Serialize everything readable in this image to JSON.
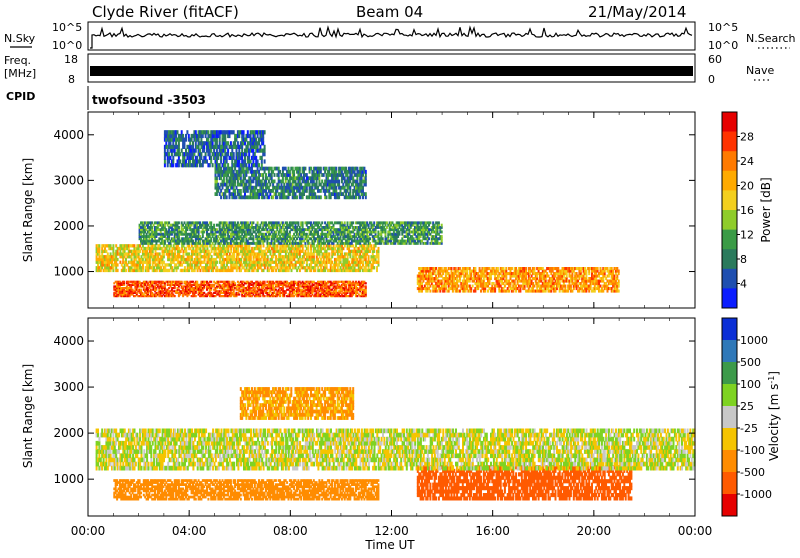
{
  "header": {
    "station": "Clyde River (fitACF)",
    "beam": "Beam 04",
    "date": "21/May/2014"
  },
  "strips": {
    "nsky_label": "N.Sky",
    "nsky_ticks": [
      "10^5",
      "10^0"
    ],
    "nsearch_label": "N.Search",
    "nsearch_ticks": [
      "10^5",
      "10^0"
    ],
    "freq_label": "Freq.",
    "freq_unit": "[MHz]",
    "freq_ticks": [
      "18",
      "8"
    ],
    "nave_label": "Nave",
    "nave_ticks": [
      "60",
      "0"
    ],
    "cpid_label": "CPID",
    "cpid_value": "twofsound -3503"
  },
  "chart_data": [
    {
      "type": "heatmap",
      "name": "power",
      "ylabel": "Slant Range [km]",
      "yticks": [
        1000,
        2000,
        3000,
        4000
      ],
      "ylim": [
        200,
        4500
      ],
      "xlim": [
        0,
        24
      ],
      "colorbar": {
        "label": "Power [dB]",
        "ticks": [
          "28",
          "24",
          "20",
          "16",
          "12",
          "8",
          "4"
        ],
        "colors": [
          "#e60000",
          "#ff3300",
          "#ff7a00",
          "#ffaa00",
          "#f3cf1e",
          "#8fcc2a",
          "#3a9b46",
          "#2a7a5c",
          "#1f4fb0",
          "#0b1dff"
        ]
      },
      "bands": [
        {
          "range": [
            450,
            800
          ],
          "x": [
            1.0,
            11.0
          ],
          "value": 26
        },
        {
          "range": [
            550,
            1100
          ],
          "x": [
            13.0,
            21.0
          ],
          "value": 22
        },
        {
          "range": [
            1000,
            1600
          ],
          "x": [
            0.3,
            11.5
          ],
          "value": 18
        },
        {
          "range": [
            1600,
            2100
          ],
          "x": [
            2.0,
            14.0
          ],
          "value": 10
        },
        {
          "range": [
            2600,
            3300
          ],
          "x": [
            5.0,
            11.0
          ],
          "value": 8
        },
        {
          "range": [
            3300,
            4100
          ],
          "x": [
            3.0,
            7.0
          ],
          "value": 6
        }
      ]
    },
    {
      "type": "heatmap",
      "name": "velocity",
      "ylabel": "Slant Range [km]",
      "xlabel": "Time UT",
      "yticks": [
        1000,
        2000,
        3000,
        4000
      ],
      "ylim": [
        200,
        4500
      ],
      "xlim": [
        0,
        24
      ],
      "xticks": [
        "00:00",
        "04:00",
        "08:00",
        "12:00",
        "16:00",
        "20:00",
        "00:00"
      ],
      "colorbar": {
        "label": "Velocity [m s",
        "label_sup": "-1",
        "label_end": "]",
        "ticks": [
          "1000",
          "500",
          "100",
          "25",
          "-25",
          "-100",
          "-500",
          "-1000"
        ],
        "colors": [
          "#0b2fd6",
          "#2f78b8",
          "#3c9a4a",
          "#7ed322",
          "#c8c8c8",
          "#f5c400",
          "#ff8c00",
          "#ff5a00",
          "#e60000"
        ]
      },
      "bands": [
        {
          "range": [
            550,
            1000
          ],
          "x": [
            1.0,
            11.5
          ],
          "value": -150
        },
        {
          "range": [
            550,
            1300
          ],
          "x": [
            13.0,
            21.5
          ],
          "value": -400
        },
        {
          "range": [
            1200,
            2100
          ],
          "x": [
            0.3,
            24.0
          ],
          "value": 0
        },
        {
          "range": [
            2300,
            3000
          ],
          "x": [
            6.0,
            10.5
          ],
          "value": -80
        }
      ]
    }
  ]
}
